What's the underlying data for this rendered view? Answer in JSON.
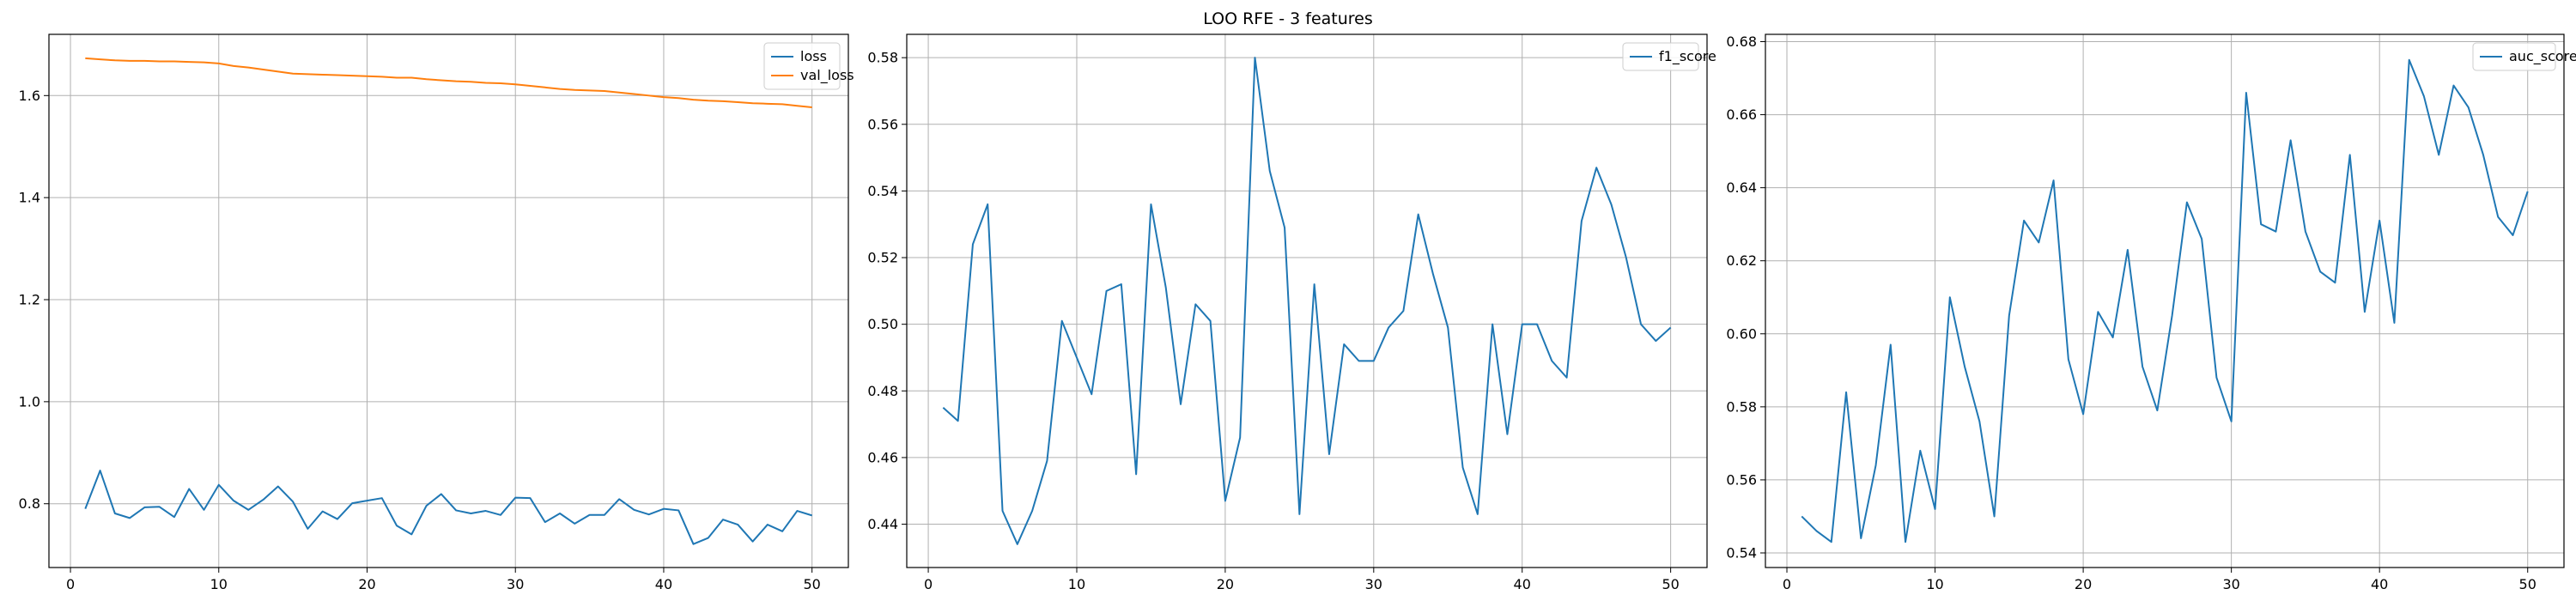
{
  "figure": {
    "title": "LOO RFE - 3 features"
  },
  "chart_data": [
    {
      "type": "line",
      "title": "",
      "xlabel": "",
      "ylabel": "",
      "xlim": [
        -1.45,
        52.45
      ],
      "ylim": [
        0.675,
        1.72
      ],
      "xticks": [
        0,
        10,
        20,
        30,
        40,
        50
      ],
      "yticks": [
        0.8,
        1.0,
        1.2,
        1.4,
        1.6
      ],
      "ytick_decimals": 1,
      "grid": true,
      "legend": "top-right",
      "x": [
        1,
        2,
        3,
        4,
        5,
        6,
        7,
        8,
        9,
        10,
        11,
        12,
        13,
        14,
        15,
        16,
        17,
        18,
        19,
        20,
        21,
        22,
        23,
        24,
        25,
        26,
        27,
        28,
        29,
        30,
        31,
        32,
        33,
        34,
        35,
        36,
        37,
        38,
        39,
        40,
        41,
        42,
        43,
        44,
        45,
        46,
        47,
        48,
        49,
        50
      ],
      "series": [
        {
          "name": "loss",
          "color": "#1f77b4",
          "values": [
            0.79,
            0.865,
            0.781,
            0.772,
            0.793,
            0.794,
            0.774,
            0.829,
            0.788,
            0.837,
            0.806,
            0.788,
            0.808,
            0.834,
            0.804,
            0.751,
            0.785,
            0.77,
            0.801,
            0.806,
            0.811,
            0.757,
            0.74,
            0.796,
            0.819,
            0.787,
            0.781,
            0.786,
            0.778,
            0.812,
            0.811,
            0.764,
            0.781,
            0.761,
            0.778,
            0.778,
            0.809,
            0.788,
            0.779,
            0.79,
            0.787,
            0.721,
            0.733,
            0.769,
            0.759,
            0.726,
            0.759,
            0.746,
            0.786,
            0.777
          ]
        },
        {
          "name": "val_loss",
          "color": "#ff7f0e",
          "values": [
            1.673,
            1.671,
            1.669,
            1.668,
            1.668,
            1.667,
            1.667,
            1.666,
            1.665,
            1.663,
            1.658,
            1.655,
            1.651,
            1.647,
            1.643,
            1.642,
            1.641,
            1.64,
            1.639,
            1.638,
            1.637,
            1.635,
            1.635,
            1.632,
            1.63,
            1.628,
            1.627,
            1.625,
            1.624,
            1.622,
            1.619,
            1.616,
            1.613,
            1.611,
            1.61,
            1.609,
            1.606,
            1.603,
            1.6,
            1.597,
            1.595,
            1.592,
            1.59,
            1.589,
            1.587,
            1.585,
            1.584,
            1.583,
            1.58,
            1.577
          ]
        }
      ]
    },
    {
      "type": "line",
      "title": "",
      "xlabel": "",
      "ylabel": "",
      "xlim": [
        -1.45,
        52.45
      ],
      "ylim": [
        0.427,
        0.587
      ],
      "xticks": [
        0,
        10,
        20,
        30,
        40,
        50
      ],
      "yticks": [
        0.44,
        0.46,
        0.48,
        0.5,
        0.52,
        0.54,
        0.56,
        0.58
      ],
      "ytick_decimals": 2,
      "grid": true,
      "legend": "top-right",
      "x": [
        1,
        2,
        3,
        4,
        5,
        6,
        7,
        8,
        9,
        10,
        11,
        12,
        13,
        14,
        15,
        16,
        17,
        18,
        19,
        20,
        21,
        22,
        23,
        24,
        25,
        26,
        27,
        28,
        29,
        30,
        31,
        32,
        33,
        34,
        35,
        36,
        37,
        38,
        39,
        40,
        41,
        42,
        43,
        44,
        45,
        46,
        47,
        48,
        49,
        50
      ],
      "series": [
        {
          "name": "f1_score",
          "color": "#1f77b4",
          "values": [
            0.475,
            0.471,
            0.524,
            0.536,
            0.444,
            0.434,
            0.444,
            0.459,
            0.501,
            0.49,
            0.479,
            0.51,
            0.512,
            0.455,
            0.536,
            0.511,
            0.476,
            0.506,
            0.501,
            0.447,
            0.466,
            0.58,
            0.546,
            0.529,
            0.443,
            0.512,
            0.461,
            0.494,
            0.489,
            0.489,
            0.499,
            0.504,
            0.533,
            0.515,
            0.499,
            0.457,
            0.443,
            0.5,
            0.467,
            0.5,
            0.5,
            0.489,
            0.484,
            0.531,
            0.547,
            0.536,
            0.52,
            0.5,
            0.495,
            0.499
          ]
        }
      ]
    },
    {
      "type": "line",
      "title": "",
      "xlabel": "",
      "ylabel": "",
      "xlim": [
        -1.45,
        52.45
      ],
      "ylim": [
        0.536,
        0.682
      ],
      "xticks": [
        0,
        10,
        20,
        30,
        40,
        50
      ],
      "yticks": [
        0.54,
        0.56,
        0.58,
        0.6,
        0.62,
        0.64,
        0.66,
        0.68
      ],
      "ytick_decimals": 2,
      "grid": true,
      "legend": "top-right",
      "x": [
        1,
        2,
        3,
        4,
        5,
        6,
        7,
        8,
        9,
        10,
        11,
        12,
        13,
        14,
        15,
        16,
        17,
        18,
        19,
        20,
        21,
        22,
        23,
        24,
        25,
        26,
        27,
        28,
        29,
        30,
        31,
        32,
        33,
        34,
        35,
        36,
        37,
        38,
        39,
        40,
        41,
        42,
        43,
        44,
        45,
        46,
        47,
        48,
        49,
        50
      ],
      "series": [
        {
          "name": "auc_score",
          "color": "#1f77b4",
          "values": [
            0.55,
            0.546,
            0.543,
            0.584,
            0.544,
            0.564,
            0.597,
            0.543,
            0.568,
            0.552,
            0.61,
            0.591,
            0.576,
            0.55,
            0.605,
            0.631,
            0.625,
            0.642,
            0.593,
            0.578,
            0.606,
            0.599,
            0.623,
            0.591,
            0.579,
            0.605,
            0.636,
            0.626,
            0.588,
            0.576,
            0.666,
            0.63,
            0.628,
            0.653,
            0.628,
            0.617,
            0.614,
            0.649,
            0.606,
            0.631,
            0.603,
            0.675,
            0.665,
            0.649,
            0.668,
            0.662,
            0.649,
            0.632,
            0.627,
            0.639
          ]
        }
      ]
    }
  ]
}
